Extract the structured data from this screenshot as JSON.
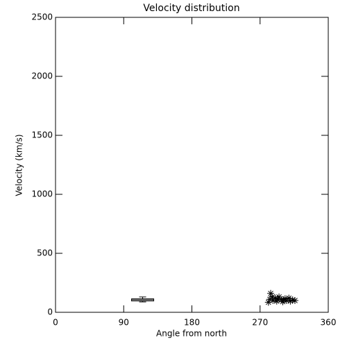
{
  "chart_data": {
    "type": "scatter",
    "title": "Velocity distribution",
    "x_label": "Angle from north",
    "y_label": "Velocity (km/s)",
    "x": [
      281,
      283,
      284,
      286,
      287,
      290,
      292,
      293,
      295,
      298,
      300,
      301,
      303,
      305,
      308,
      310,
      313,
      316
    ],
    "values": [
      85,
      110,
      160,
      130,
      100,
      120,
      95,
      110,
      130,
      105,
      90,
      105,
      115,
      100,
      120,
      95,
      105,
      100
    ],
    "color": "#000000",
    "box": {
      "x": 115,
      "whisker_low": 88,
      "q1": 96,
      "median": 106,
      "q3": 114,
      "whisker_high": 130
    },
    "xlim": [
      0,
      360
    ],
    "xticks": [
      0,
      90,
      180,
      270,
      360
    ],
    "ylim": [
      0,
      2500
    ],
    "yticks": [
      0,
      500,
      1000,
      1500,
      2000,
      2500
    ],
    "grid": false
  }
}
